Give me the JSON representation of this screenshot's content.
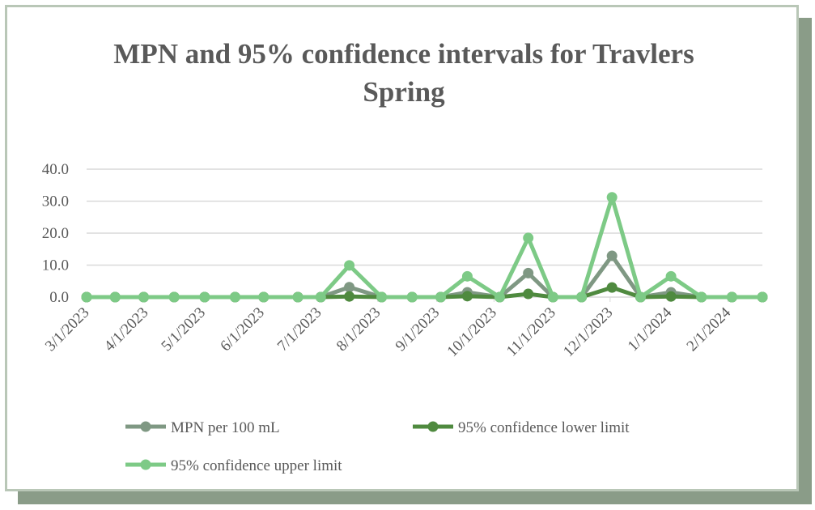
{
  "chart_data": {
    "type": "line",
    "title": "MPN and 95% confidence intervals for Travlers Spring",
    "x": [
      "3/1/2023",
      "3/16/2023",
      "3/31/2023",
      "4/16/2023",
      "5/2/2023",
      "5/18/2023",
      "6/2/2023",
      "6/20/2023",
      "7/2/2023",
      "7/17/2023",
      "8/3/2023",
      "8/19/2023",
      "9/3/2023",
      "9/17/2023",
      "10/4/2023",
      "10/19/2023",
      "11/1/2023",
      "11/16/2023",
      "12/2/2023",
      "12/17/2023",
      "1/2/2024",
      "1/18/2024",
      "2/3/2024",
      "2/19/2024"
    ],
    "series": [
      {
        "name": "MPN per 100 mL",
        "color": "#7f9883",
        "values": [
          0,
          0,
          0,
          0,
          0,
          0,
          0,
          0,
          0,
          3.1,
          0,
          0,
          0,
          1.5,
          0,
          7.5,
          0,
          0,
          12.9,
          0,
          1.5,
          0,
          0,
          0
        ]
      },
      {
        "name": "95% confidence lower limit",
        "color": "#4f8a3f",
        "values": [
          0,
          0,
          0,
          0,
          0,
          0,
          0,
          0,
          0,
          0.2,
          0,
          0,
          0,
          0.3,
          0,
          1.0,
          0,
          0,
          3.0,
          0,
          0.2,
          0,
          0,
          0
        ]
      },
      {
        "name": "95% confidence upper limit",
        "color": "#7dca86",
        "values": [
          0,
          0,
          0,
          0,
          0,
          0,
          0,
          0,
          0,
          9.9,
          0,
          0,
          0,
          6.5,
          0,
          18.5,
          0,
          0,
          31.2,
          0,
          6.5,
          0,
          0,
          0
        ]
      }
    ],
    "xlim": [
      "3/1/2023",
      "2/19/2024"
    ],
    "xticks": [
      "3/1/2023",
      "4/1/2023",
      "5/1/2023",
      "6/1/2023",
      "7/1/2023",
      "8/1/2023",
      "9/1/2023",
      "10/1/2023",
      "11/1/2023",
      "12/1/2023",
      "1/1/2024",
      "2/1/2024"
    ],
    "ylim": [
      0,
      40
    ],
    "yticks": [
      {
        "value": 0,
        "label": "0.0"
      },
      {
        "value": 10,
        "label": "10.0"
      },
      {
        "value": 20,
        "label": "20.0"
      },
      {
        "value": 30,
        "label": "30.0"
      },
      {
        "value": 40,
        "label": "40.0"
      }
    ],
    "grid": true,
    "legend": "bottom"
  }
}
